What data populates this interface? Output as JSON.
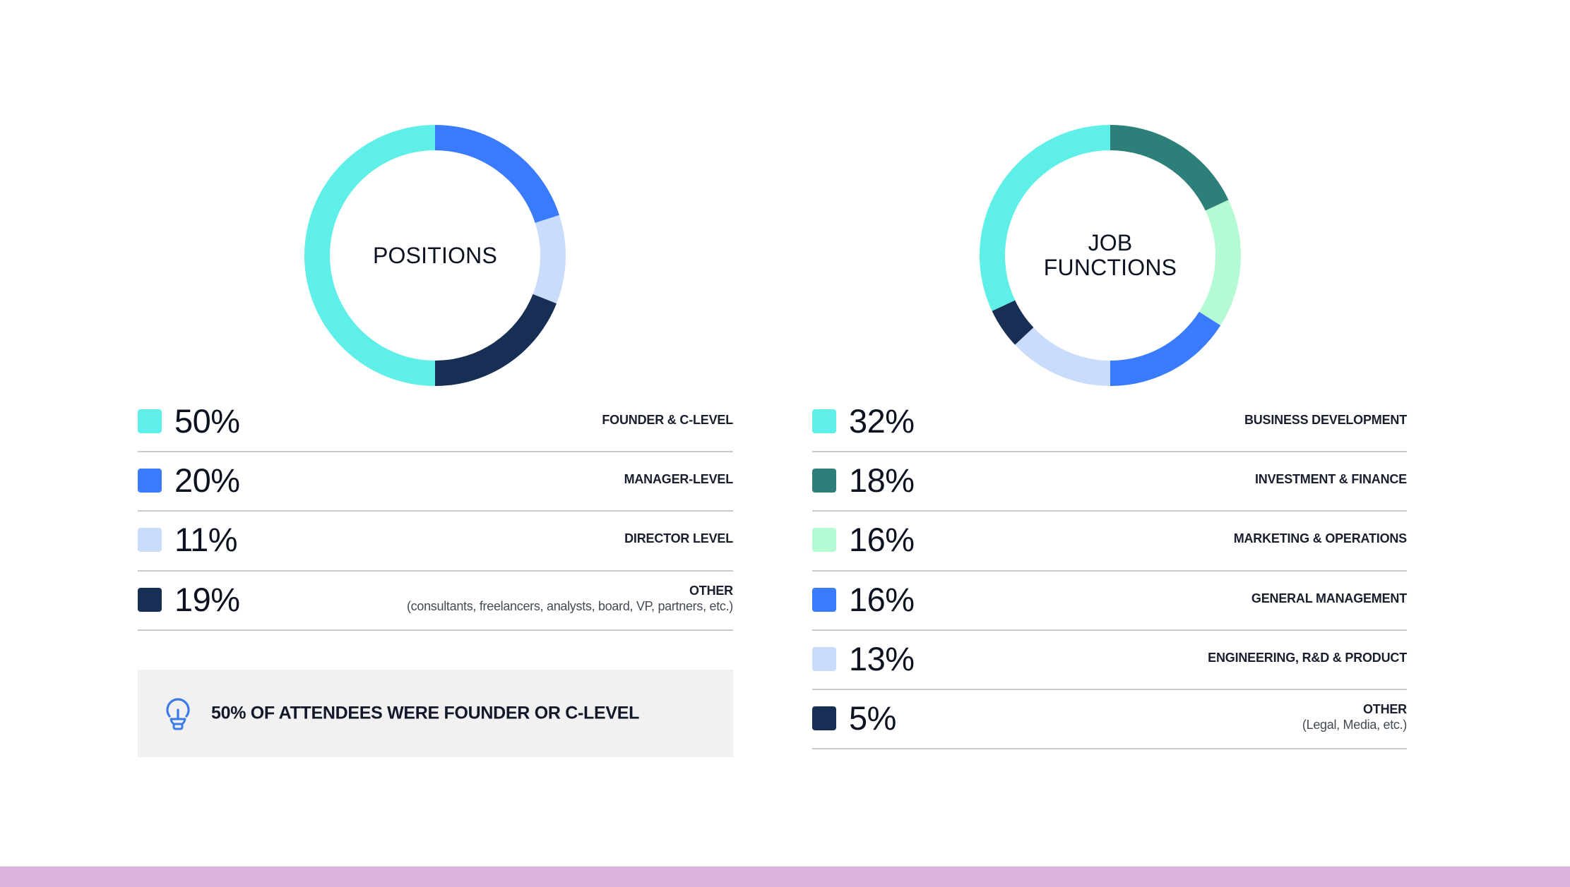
{
  "colors": {
    "cyan": "#5EF0E8",
    "blue": "#3A7BFD",
    "light_blue": "#CADCFC",
    "navy": "#172E55",
    "dark_teal": "#2D8079",
    "mint": "#B4FBD3",
    "divider": "#C9C9C9",
    "callout_bg": "#F1F1F1",
    "footer_bar": "#DCB2DE"
  },
  "positions": {
    "title": "POSITIONS",
    "rows": [
      {
        "pct": "50%",
        "label": "FOUNDER & C-LEVEL",
        "sublabel": "",
        "color": "#5EF0E8"
      },
      {
        "pct": "20%",
        "label": "MANAGER-LEVEL",
        "sublabel": "",
        "color": "#3A7BFD"
      },
      {
        "pct": "11%",
        "label": "DIRECTOR LEVEL",
        "sublabel": "",
        "color": "#CADCFC"
      },
      {
        "pct": "19%",
        "label": "OTHER",
        "sublabel": "(consultants, freelancers, analysts, board, VP, partners, etc.)",
        "color": "#172E55"
      }
    ]
  },
  "job_functions": {
    "title": "JOB\nFUNCTIONS",
    "rows": [
      {
        "pct": "32%",
        "label": "BUSINESS DEVELOPMENT",
        "sublabel": "",
        "color": "#5EF0E8"
      },
      {
        "pct": "18%",
        "label": "INVESTMENT & FINANCE",
        "sublabel": "",
        "color": "#2D8079"
      },
      {
        "pct": "16%",
        "label": "MARKETING & OPERATIONS",
        "sublabel": "",
        "color": "#B4FBD3"
      },
      {
        "pct": "16%",
        "label": "GENERAL MANAGEMENT",
        "sublabel": "",
        "color": "#3A7BFD"
      },
      {
        "pct": "13%",
        "label": "ENGINEERING, R&D & PRODUCT",
        "sublabel": "",
        "color": "#CADCFC"
      },
      {
        "pct": "5%",
        "label": "OTHER",
        "sublabel": "(Legal, Media, etc.)",
        "color": "#172E55"
      }
    ]
  },
  "callout": {
    "icon": "lightbulb-icon",
    "text": "50% OF ATTENDEES WERE FOUNDER OR C-LEVEL"
  },
  "chart_data": [
    {
      "type": "pie",
      "title": "POSITIONS",
      "donut": true,
      "start_angle": "12 o'clock, clockwise",
      "categories": [
        "MANAGER-LEVEL",
        "DIRECTOR LEVEL",
        "OTHER",
        "FOUNDER & C-LEVEL"
      ],
      "values": [
        20,
        11,
        19,
        50
      ],
      "colors": [
        "#3A7BFD",
        "#CADCFC",
        "#172E55",
        "#5EF0E8"
      ],
      "legend_order": [
        "FOUNDER & C-LEVEL",
        "MANAGER-LEVEL",
        "DIRECTOR LEVEL",
        "OTHER"
      ],
      "legend_position": "below",
      "annotations": [
        "OTHER (consultants, freelancers, analysts, board, VP, partners, etc.)"
      ]
    },
    {
      "type": "pie",
      "title": "JOB FUNCTIONS",
      "donut": true,
      "start_angle": "12 o'clock, clockwise",
      "categories": [
        "INVESTMENT & FINANCE",
        "MARKETING & OPERATIONS",
        "GENERAL MANAGEMENT",
        "ENGINEERING, R&D & PRODUCT",
        "OTHER",
        "BUSINESS DEVELOPMENT"
      ],
      "values": [
        18,
        16,
        16,
        13,
        5,
        32
      ],
      "colors": [
        "#2D8079",
        "#B4FBD3",
        "#3A7BFD",
        "#CADCFC",
        "#172E55",
        "#5EF0E8"
      ],
      "legend_order": [
        "BUSINESS DEVELOPMENT",
        "INVESTMENT & FINANCE",
        "MARKETING & OPERATIONS",
        "GENERAL MANAGEMENT",
        "ENGINEERING, R&D & PRODUCT",
        "OTHER"
      ],
      "legend_position": "below",
      "annotations": [
        "OTHER (Legal, Media, etc.)"
      ]
    }
  ]
}
